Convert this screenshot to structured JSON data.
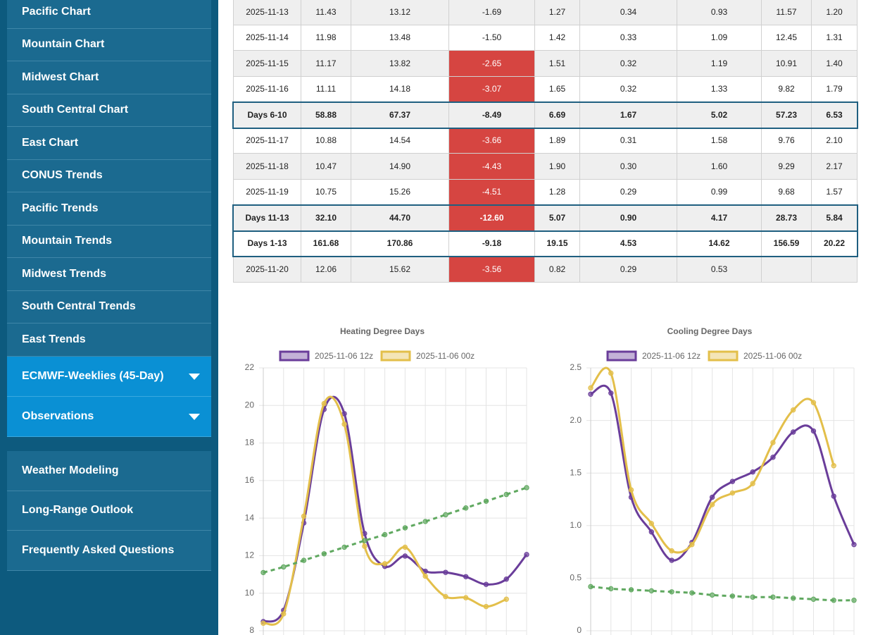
{
  "nav": {
    "charts": [
      "Pacific Chart",
      "Mountain Chart",
      "Midwest Chart",
      "South Central Chart",
      "East Chart",
      "CONUS Trends",
      "Pacific Trends",
      "Mountain Trends",
      "Midwest Trends",
      "South Central Trends",
      "East Trends"
    ],
    "expandable": [
      "ECMWF-Weeklies (45-Day)",
      "Observations"
    ],
    "links": [
      "Weather Modeling",
      "Long-Range Outlook",
      "Frequently Asked Questions"
    ]
  },
  "table": {
    "rows": [
      {
        "cells": [
          "2025-11-13",
          "11.43",
          "13.12",
          "-1.69",
          "1.27",
          "0.34",
          "0.93",
          "11.57",
          "1.20"
        ],
        "summary": false,
        "alert": false
      },
      {
        "cells": [
          "2025-11-14",
          "11.98",
          "13.48",
          "-1.50",
          "1.42",
          "0.33",
          "1.09",
          "12.45",
          "1.31"
        ],
        "summary": false,
        "alert": false
      },
      {
        "cells": [
          "2025-11-15",
          "11.17",
          "13.82",
          "-2.65",
          "1.51",
          "0.32",
          "1.19",
          "10.91",
          "1.40"
        ],
        "summary": false,
        "alert": true
      },
      {
        "cells": [
          "2025-11-16",
          "11.11",
          "14.18",
          "-3.07",
          "1.65",
          "0.32",
          "1.33",
          "9.82",
          "1.79"
        ],
        "summary": false,
        "alert": true
      },
      {
        "cells": [
          "Days 6-10",
          "58.88",
          "67.37",
          "-8.49",
          "6.69",
          "1.67",
          "5.02",
          "57.23",
          "6.53"
        ],
        "summary": true,
        "alert": false
      },
      {
        "cells": [
          "2025-11-17",
          "10.88",
          "14.54",
          "-3.66",
          "1.89",
          "0.31",
          "1.58",
          "9.76",
          "2.10"
        ],
        "summary": false,
        "alert": true
      },
      {
        "cells": [
          "2025-11-18",
          "10.47",
          "14.90",
          "-4.43",
          "1.90",
          "0.30",
          "1.60",
          "9.29",
          "2.17"
        ],
        "summary": false,
        "alert": true
      },
      {
        "cells": [
          "2025-11-19",
          "10.75",
          "15.26",
          "-4.51",
          "1.28",
          "0.29",
          "0.99",
          "9.68",
          "1.57"
        ],
        "summary": false,
        "alert": true
      },
      {
        "cells": [
          "Days 11-13",
          "32.10",
          "44.70",
          "-12.60",
          "5.07",
          "0.90",
          "4.17",
          "28.73",
          "5.84"
        ],
        "summary": true,
        "alert": true
      },
      {
        "cells": [
          "Days 1-13",
          "161.68",
          "170.86",
          "-9.18",
          "19.15",
          "4.53",
          "14.62",
          "156.59",
          "20.22"
        ],
        "summary": true,
        "alert": false
      },
      {
        "cells": [
          "2025-11-20",
          "12.06",
          "15.62",
          "-3.56",
          "0.82",
          "0.29",
          "0.53"
        ],
        "summary": false,
        "alert": true
      }
    ]
  },
  "chart_data": [
    {
      "type": "line",
      "title": "Heating Degree Days",
      "categories": [
        null,
        null,
        null,
        null,
        null,
        null,
        null,
        null,
        null,
        null,
        null,
        null,
        null,
        null
      ],
      "ylim": [
        8,
        22
      ],
      "yticks": [
        8,
        10,
        12,
        14,
        16,
        18,
        20,
        22
      ],
      "grid": true,
      "series": [
        {
          "name": "2025-11-06 12z",
          "color": "#6a3d9a",
          "values": [
            8.49,
            9.09,
            13.74,
            19.79,
            19.56,
            13.18,
            11.43,
            11.98,
            11.17,
            11.11,
            10.88,
            10.47,
            10.75,
            12.06
          ]
        },
        {
          "name": "2025-11-06 00z",
          "color": "#e3bf4a",
          "values": [
            8.4,
            8.9,
            14.1,
            20.1,
            19.0,
            12.5,
            11.57,
            12.45,
            10.91,
            9.82,
            9.76,
            9.29,
            9.68,
            null
          ]
        },
        {
          "color": "#5fa85f",
          "dashed": true,
          "values": [
            11.1,
            11.4,
            11.75,
            12.1,
            12.45,
            12.8,
            13.12,
            13.48,
            13.82,
            14.18,
            14.54,
            14.9,
            15.26,
            15.62
          ]
        }
      ]
    },
    {
      "type": "line",
      "title": "Cooling Degree Days",
      "categories": [
        null,
        null,
        null,
        null,
        null,
        null,
        null,
        null,
        null,
        null,
        null,
        null,
        null,
        null
      ],
      "ylim": [
        0,
        2.5
      ],
      "yticks": [
        0,
        0.5,
        {
          "value": 1,
          "label": "1.0"
        },
        1.5,
        {
          "value": 2,
          "label": "2.0"
        },
        2.5
      ],
      "grid": true,
      "series": [
        {
          "name": "2025-11-06 12z",
          "color": "#6a3d9a",
          "values": [
            2.25,
            2.26,
            1.27,
            0.94,
            0.67,
            0.84,
            1.27,
            1.42,
            1.51,
            1.65,
            1.89,
            1.9,
            1.28,
            0.82
          ]
        },
        {
          "name": "2025-11-06 00z",
          "color": "#e3bf4a",
          "values": [
            2.31,
            2.45,
            1.34,
            1.02,
            0.76,
            0.82,
            1.2,
            1.31,
            1.4,
            1.79,
            2.1,
            2.17,
            1.57,
            null
          ]
        },
        {
          "color": "#5fa85f",
          "dashed": true,
          "values": [
            0.42,
            0.4,
            0.39,
            0.38,
            0.37,
            0.36,
            0.34,
            0.33,
            0.32,
            0.32,
            0.31,
            0.3,
            0.29,
            0.29
          ]
        }
      ]
    }
  ]
}
